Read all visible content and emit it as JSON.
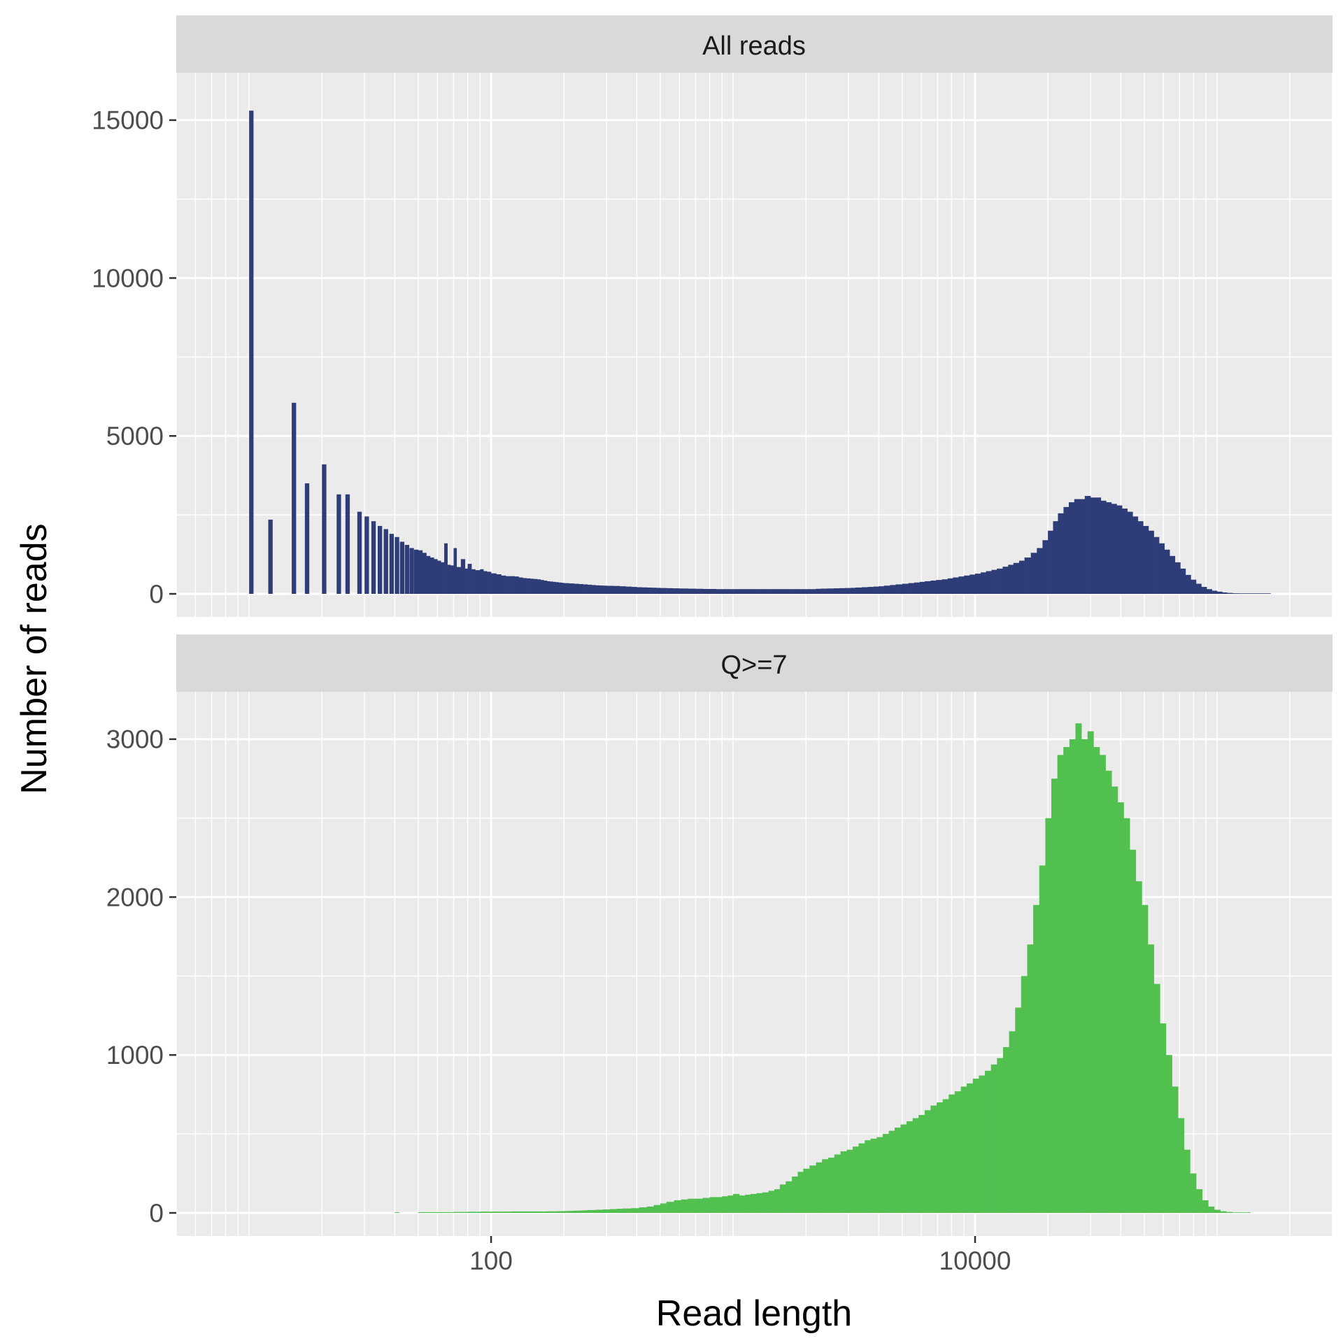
{
  "chart_data": {
    "type": "bar",
    "xlabel": "Read length",
    "ylabel": "Number of reads",
    "x_scale": "log10",
    "xlim": [
      5,
      300000
    ],
    "x_ticks": [
      100,
      10000
    ],
    "x_tick_labels": [
      "100",
      "10000"
    ],
    "grid": true,
    "panels": [
      {
        "strip": "All reads",
        "color": "#2e3c78",
        "ylim": [
          0,
          16500
        ],
        "y_ticks": [
          0,
          5000,
          10000,
          15000
        ],
        "y_tick_labels": [
          "0",
          "5000",
          "10000",
          "15000"
        ],
        "bars": [
          [
            10,
            15300
          ],
          [
            12,
            2350
          ],
          [
            15,
            6050
          ],
          [
            17,
            3500
          ],
          [
            20,
            4100
          ],
          [
            23,
            3150
          ],
          [
            25,
            3150
          ],
          [
            28,
            2600
          ],
          [
            30,
            2450
          ],
          [
            32,
            2300
          ],
          [
            34,
            2150
          ],
          [
            36,
            2050
          ],
          [
            38,
            1900
          ],
          [
            40,
            1800
          ],
          [
            42,
            1650
          ],
          [
            44,
            1550
          ],
          [
            46,
            1450
          ],
          [
            48,
            1400
          ],
          [
            50,
            1380
          ],
          [
            52,
            1300
          ],
          [
            54,
            1200
          ],
          [
            56,
            1150
          ],
          [
            58,
            1100
          ],
          [
            60,
            1050
          ],
          [
            62,
            1000
          ],
          [
            64,
            1600
          ],
          [
            66,
            920
          ],
          [
            68,
            900
          ],
          [
            70,
            1450
          ],
          [
            72,
            850
          ],
          [
            75,
            1100
          ],
          [
            78,
            800
          ],
          [
            80,
            950
          ],
          [
            83,
            780
          ],
          [
            86,
            750
          ],
          [
            90,
            780
          ],
          [
            93,
            720
          ],
          [
            96,
            700
          ],
          [
            100,
            650
          ],
          [
            105,
            620
          ],
          [
            110,
            580
          ],
          [
            115,
            560
          ],
          [
            120,
            560
          ],
          [
            125,
            550
          ],
          [
            130,
            520
          ],
          [
            135,
            500
          ],
          [
            140,
            490
          ],
          [
            145,
            480
          ],
          [
            150,
            470
          ],
          [
            155,
            460
          ],
          [
            160,
            440
          ],
          [
            165,
            420
          ],
          [
            170,
            400
          ],
          [
            175,
            390
          ],
          [
            180,
            380
          ],
          [
            185,
            370
          ],
          [
            190,
            360
          ],
          [
            195,
            350
          ],
          [
            200,
            340
          ],
          [
            210,
            330
          ],
          [
            220,
            320
          ],
          [
            230,
            310
          ],
          [
            240,
            300
          ],
          [
            250,
            290
          ],
          [
            260,
            280
          ],
          [
            270,
            270
          ],
          [
            280,
            265
          ],
          [
            290,
            260
          ],
          [
            300,
            255
          ],
          [
            320,
            250
          ],
          [
            340,
            240
          ],
          [
            360,
            230
          ],
          [
            380,
            220
          ],
          [
            400,
            210
          ],
          [
            420,
            205
          ],
          [
            440,
            200
          ],
          [
            460,
            195
          ],
          [
            480,
            190
          ],
          [
            500,
            185
          ],
          [
            530,
            180
          ],
          [
            560,
            175
          ],
          [
            600,
            170
          ],
          [
            650,
            165
          ],
          [
            700,
            160
          ],
          [
            750,
            155
          ],
          [
            800,
            155
          ],
          [
            850,
            150
          ],
          [
            900,
            150
          ],
          [
            950,
            150
          ],
          [
            1000,
            150
          ],
          [
            1060,
            150
          ],
          [
            1120,
            150
          ],
          [
            1180,
            150
          ],
          [
            1250,
            150
          ],
          [
            1320,
            150
          ],
          [
            1400,
            150
          ],
          [
            1480,
            150
          ],
          [
            1560,
            150
          ],
          [
            1650,
            150
          ],
          [
            1750,
            150
          ],
          [
            1850,
            150
          ],
          [
            1950,
            150
          ],
          [
            2070,
            150
          ],
          [
            2200,
            160
          ],
          [
            2300,
            165
          ],
          [
            2450,
            170
          ],
          [
            2600,
            175
          ],
          [
            2750,
            180
          ],
          [
            2900,
            185
          ],
          [
            3050,
            190
          ],
          [
            3200,
            200
          ],
          [
            3400,
            210
          ],
          [
            3600,
            220
          ],
          [
            3800,
            230
          ],
          [
            4000,
            240
          ],
          [
            4200,
            260
          ],
          [
            4450,
            280
          ],
          [
            4700,
            300
          ],
          [
            5000,
            320
          ],
          [
            5300,
            340
          ],
          [
            5600,
            360
          ],
          [
            5900,
            380
          ],
          [
            6200,
            400
          ],
          [
            6550,
            420
          ],
          [
            6900,
            440
          ],
          [
            7300,
            460
          ],
          [
            7700,
            490
          ],
          [
            8100,
            520
          ],
          [
            8550,
            550
          ],
          [
            9000,
            580
          ],
          [
            9500,
            610
          ],
          [
            10000,
            640
          ],
          [
            10550,
            680
          ],
          [
            11100,
            720
          ],
          [
            11700,
            760
          ],
          [
            12300,
            800
          ],
          [
            13000,
            860
          ],
          [
            13700,
            920
          ],
          [
            14400,
            980
          ],
          [
            15200,
            1050
          ],
          [
            16000,
            1150
          ],
          [
            17000,
            1300
          ],
          [
            18000,
            1450
          ],
          [
            19000,
            1700
          ],
          [
            20000,
            2000
          ],
          [
            21000,
            2300
          ],
          [
            22000,
            2550
          ],
          [
            23200,
            2750
          ],
          [
            24400,
            2900
          ],
          [
            25700,
            3000
          ],
          [
            27000,
            3000
          ],
          [
            28400,
            3100
          ],
          [
            30000,
            3050
          ],
          [
            31500,
            3050
          ],
          [
            33100,
            2950
          ],
          [
            34800,
            2900
          ],
          [
            36600,
            2850
          ],
          [
            38500,
            2800
          ],
          [
            40500,
            2700
          ],
          [
            42600,
            2600
          ],
          [
            44800,
            2450
          ],
          [
            47100,
            2300
          ],
          [
            49500,
            2150
          ],
          [
            52100,
            2000
          ],
          [
            54800,
            1800
          ],
          [
            57600,
            1600
          ],
          [
            60600,
            1400
          ],
          [
            63700,
            1200
          ],
          [
            67000,
            1000
          ],
          [
            70500,
            800
          ],
          [
            74100,
            600
          ],
          [
            77900,
            450
          ],
          [
            81900,
            320
          ],
          [
            86100,
            220
          ],
          [
            90600,
            150
          ],
          [
            95300,
            100
          ],
          [
            100000,
            70
          ],
          [
            105000,
            45
          ],
          [
            110000,
            30
          ],
          [
            116000,
            20
          ],
          [
            122000,
            12
          ],
          [
            128000,
            8
          ],
          [
            135000,
            5
          ],
          [
            142000,
            3
          ],
          [
            150000,
            2
          ],
          [
            158000,
            1
          ]
        ]
      },
      {
        "strip": "Q>=7",
        "color": "#51c04f",
        "ylim": [
          0,
          3300
        ],
        "y_ticks": [
          0,
          1000,
          2000,
          3000
        ],
        "y_tick_labels": [
          "0",
          "1000",
          "2000",
          "3000"
        ],
        "bars": [
          [
            40,
            4
          ],
          [
            50,
            5
          ],
          [
            60,
            5
          ],
          [
            70,
            6
          ],
          [
            80,
            7
          ],
          [
            90,
            8
          ],
          [
            100,
            8
          ],
          [
            110,
            8
          ],
          [
            120,
            9
          ],
          [
            130,
            9
          ],
          [
            140,
            9
          ],
          [
            150,
            9
          ],
          [
            160,
            9
          ],
          [
            170,
            10
          ],
          [
            180,
            10
          ],
          [
            190,
            11
          ],
          [
            200,
            12
          ],
          [
            210,
            13
          ],
          [
            220,
            14
          ],
          [
            230,
            15
          ],
          [
            240,
            16
          ],
          [
            250,
            18
          ],
          [
            270,
            20
          ],
          [
            290,
            22
          ],
          [
            310,
            24
          ],
          [
            330,
            26
          ],
          [
            350,
            28
          ],
          [
            380,
            30
          ],
          [
            410,
            35
          ],
          [
            440,
            40
          ],
          [
            470,
            50
          ],
          [
            500,
            60
          ],
          [
            530,
            70
          ],
          [
            570,
            80
          ],
          [
            610,
            85
          ],
          [
            650,
            90
          ],
          [
            700,
            90
          ],
          [
            750,
            95
          ],
          [
            800,
            100
          ],
          [
            850,
            100
          ],
          [
            900,
            105
          ],
          [
            950,
            110
          ],
          [
            1000,
            120
          ],
          [
            1060,
            110
          ],
          [
            1120,
            115
          ],
          [
            1180,
            120
          ],
          [
            1250,
            125
          ],
          [
            1320,
            130
          ],
          [
            1400,
            140
          ],
          [
            1480,
            150
          ],
          [
            1560,
            180
          ],
          [
            1650,
            200
          ],
          [
            1750,
            230
          ],
          [
            1850,
            260
          ],
          [
            1950,
            280
          ],
          [
            2070,
            300
          ],
          [
            2200,
            320
          ],
          [
            2330,
            340
          ],
          [
            2470,
            350
          ],
          [
            2620,
            370
          ],
          [
            2780,
            390
          ],
          [
            2950,
            400
          ],
          [
            3120,
            420
          ],
          [
            3300,
            440
          ],
          [
            3500,
            460
          ],
          [
            3700,
            470
          ],
          [
            3920,
            480
          ],
          [
            4150,
            500
          ],
          [
            4400,
            520
          ],
          [
            4650,
            540
          ],
          [
            4920,
            560
          ],
          [
            5210,
            580
          ],
          [
            5520,
            600
          ],
          [
            5840,
            620
          ],
          [
            6190,
            650
          ],
          [
            6550,
            680
          ],
          [
            6940,
            700
          ],
          [
            7350,
            720
          ],
          [
            7780,
            750
          ],
          [
            8240,
            770
          ],
          [
            8730,
            800
          ],
          [
            9240,
            820
          ],
          [
            9790,
            850
          ],
          [
            10370,
            870
          ],
          [
            10980,
            900
          ],
          [
            11630,
            940
          ],
          [
            12320,
            980
          ],
          [
            13050,
            1050
          ],
          [
            13820,
            1150
          ],
          [
            14640,
            1300
          ],
          [
            15500,
            1500
          ],
          [
            16420,
            1700
          ],
          [
            17390,
            1950
          ],
          [
            18420,
            2200
          ],
          [
            19510,
            2500
          ],
          [
            20660,
            2750
          ],
          [
            21880,
            2900
          ],
          [
            23170,
            2950
          ],
          [
            24540,
            3000
          ],
          [
            25990,
            3100
          ],
          [
            27530,
            3000
          ],
          [
            29160,
            3050
          ],
          [
            30880,
            2950
          ],
          [
            32710,
            2900
          ],
          [
            34640,
            2800
          ],
          [
            36690,
            2700
          ],
          [
            38860,
            2600
          ],
          [
            41150,
            2500
          ],
          [
            43580,
            2300
          ],
          [
            46160,
            2100
          ],
          [
            48890,
            1950
          ],
          [
            51780,
            1700
          ],
          [
            54840,
            1450
          ],
          [
            58080,
            1200
          ],
          [
            61510,
            1000
          ],
          [
            65150,
            800
          ],
          [
            69000,
            600
          ],
          [
            73080,
            400
          ],
          [
            77400,
            250
          ],
          [
            81970,
            150
          ],
          [
            86820,
            80
          ],
          [
            91950,
            40
          ],
          [
            97380,
            20
          ],
          [
            103140,
            10
          ],
          [
            109230,
            6
          ],
          [
            115690,
            3
          ],
          [
            122530,
            2
          ],
          [
            129770,
            1
          ]
        ]
      }
    ]
  }
}
